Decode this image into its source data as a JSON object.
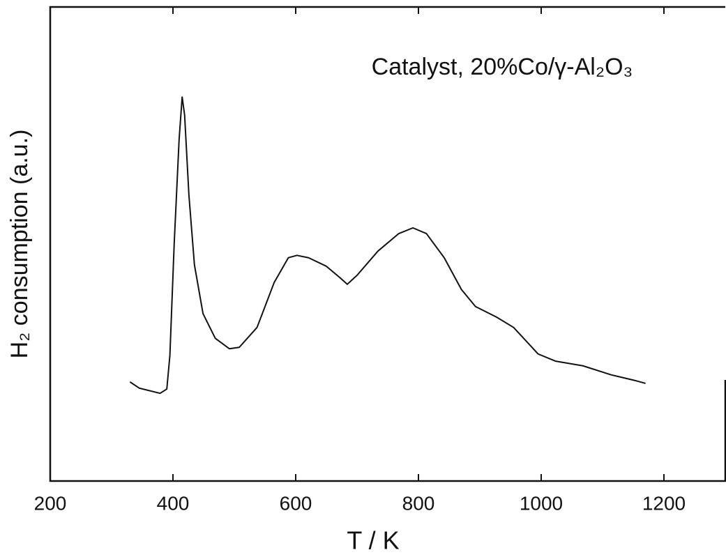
{
  "chart_data": {
    "type": "line",
    "annotation": "Catalyst, 20%Co/γ-Al₂O₃",
    "y_label": "H₂ consumption (a.u.)",
    "x_label": "T / K",
    "x": [
      330,
      345,
      379,
      390,
      395,
      402,
      410,
      415,
      419,
      426,
      435,
      449,
      469,
      492,
      508,
      537,
      565,
      588,
      602,
      621,
      650,
      672,
      684,
      700,
      734,
      768,
      791,
      813,
      842,
      870,
      893,
      927,
      955,
      995,
      1023,
      1068,
      1114,
      1153,
      1170
    ],
    "series": [
      {
        "color": "#111111",
        "values": [
          20.9,
          19.6,
          18.5,
          19.4,
          26.5,
          50,
          72,
          81,
          77.2,
          60.3,
          45.6,
          35.3,
          30.1,
          27.9,
          28.2,
          32.4,
          41.9,
          47.1,
          47.6,
          47.1,
          45.3,
          42.9,
          41.5,
          43.4,
          48.5,
          52.2,
          53.4,
          52.2,
          47.1,
          40.4,
          36.8,
          34.6,
          32.4,
          26.8,
          25.3,
          24.3,
          22.4,
          21.2,
          20.6
        ]
      }
    ],
    "xlim": [
      200,
      1300
    ],
    "xticks": [
      200,
      400,
      600,
      800,
      1000,
      1200
    ],
    "ylim": [
      0,
      100
    ]
  }
}
